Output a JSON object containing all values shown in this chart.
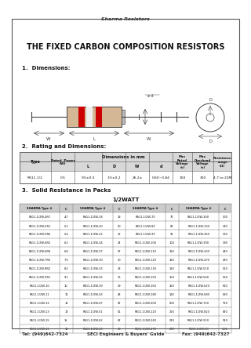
{
  "title_top": "Sharma Resistors",
  "title_main": "THE FIXED CARBON COMPOSITION RESISTORS",
  "section1": "1.  Dimensions:",
  "section2": "2.  Rating and Dimensions:",
  "section3": "3.  Solid Resistance in Packs",
  "watt_label": "1/2WATT",
  "table2_data": [
    [
      "RS11-1/2",
      "0.5",
      "9.5±0.5",
      "3.5±0.2",
      "26.2±",
      "0.60~0.84",
      "150",
      "300",
      "4.7 to 22M"
    ]
  ],
  "table3_headers": [
    "SHARMA Type #",
    "C",
    "SHARMA Type #",
    "C",
    "SHARMA Type #",
    "C",
    "SHARMA Type #",
    "C"
  ],
  "table3_data": [
    [
      "RS11-1/2W-4R7",
      "4.7",
      "RS11-1/2W-18",
      "18",
      "RS11-1/2W-75",
      "75",
      "RS11-1/2W-300",
      "300"
    ],
    [
      "RS11-1/2W-5R1",
      "5.1",
      "RS11-1/2W-20",
      "20",
      "RS11-1/2W-82",
      "82",
      "RS11-1/2W-330",
      "330"
    ],
    [
      "RS11-1/2W-5R6",
      "5.6",
      "RS11-1/2W-22",
      "22",
      "RS11-1/2W-91",
      "91",
      "RS11-1/2W-360",
      "360"
    ],
    [
      "RS11-1/2W-6R2",
      "6.2",
      "RS11-1/2W-24",
      "24",
      "RS11-1/2W-100",
      "100",
      "RS11-1/2W-390",
      "390"
    ],
    [
      "RS11-1/2W-6R8",
      "6.8",
      "RS11-1/2W-27",
      "27",
      "RS11-1/2W-110",
      "110",
      "RS11-1/2W-430",
      "430"
    ],
    [
      "RS11-1/2W-7R5",
      "7.5",
      "RS11-1/2W-30",
      "30",
      "RS11-1/2W-120",
      "120",
      "RS11-1/2W-470",
      "470"
    ],
    [
      "RS11-1/2W-8R2",
      "8.2",
      "RS11-1/2W-33",
      "33",
      "RS11-1/2W-130",
      "130",
      "RS11-1/2W-510",
      "510"
    ],
    [
      "RS11-1/2W-9R1",
      "9.1",
      "RS11-1/2W-36",
      "36",
      "RS11-1/2W-150",
      "150",
      "RS11-1/2W-560",
      "560"
    ],
    [
      "RS11-1/2W-10",
      "10",
      "RS11-1/2W-39",
      "39",
      "RS11-1/2W-160",
      "160",
      "RS11-1/2W-620",
      "620"
    ],
    [
      "RS11-1/2W-11",
      "11",
      "RS11-1/2W-43",
      "43",
      "RS11-1/2W-180",
      "180",
      "RS11-1/2W-680",
      "680"
    ],
    [
      "RS11-1/2W-12",
      "12",
      "RS11-1/2W-47",
      "47",
      "RS11-1/2W-200",
      "200",
      "RS11-1/2W-750",
      "750"
    ],
    [
      "RS11-1/2W-13",
      "13",
      "RS11-1/2W-51",
      "51",
      "RS11-1/2W-220",
      "220",
      "RS11-1/2W-820",
      "820"
    ],
    [
      "RS11-1/2W-15",
      "15",
      "RS11-1/2W-62",
      "62",
      "RS11-1/2W-240",
      "240",
      "RS11-1/2W-910",
      "910"
    ],
    [
      "RS11-1/2W-16",
      "16",
      "RS11-1/2W-68",
      "68",
      "RS11-1/2W-270",
      "270",
      "RS11-1/2W-1K",
      "1.0k"
    ]
  ],
  "footer_left": "Tel: (949)642-7324",
  "footer_center": "SECI Engineers & Buyers' Guide",
  "footer_right": "Fax: (949)642-7327",
  "bg_color": "#ffffff",
  "border_color": "#555555"
}
